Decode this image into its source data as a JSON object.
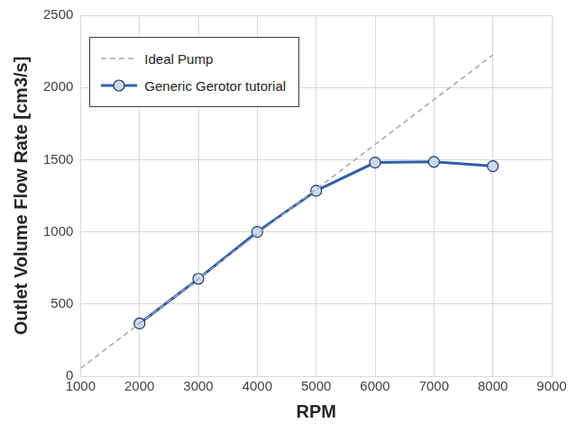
{
  "chart_data": {
    "type": "line",
    "x_label": "RPM",
    "y_label": "Outlet Volume Flow Rate [cm3/s]",
    "series": [
      {
        "name": "Ideal Pump",
        "color": "#a6a6a6",
        "line_style": "dashed",
        "marker": "none",
        "x": [
          1000,
          8000
        ],
        "values": [
          55,
          2225
        ]
      },
      {
        "name": "Generic Gerotor tutorial",
        "color": "#2f5fa8",
        "line_style": "solid",
        "marker": "circle",
        "x": [
          2000,
          3000,
          4000,
          5000,
          6000,
          7000,
          8000
        ],
        "values": [
          365,
          675,
          1000,
          1285,
          1480,
          1485,
          1455
        ]
      }
    ],
    "xlim": [
      1000,
      9000
    ],
    "xticks": [
      1000,
      2000,
      3000,
      4000,
      5000,
      6000,
      7000,
      8000,
      9000
    ],
    "ylim": [
      0,
      2500
    ],
    "yticks": [
      0,
      500,
      1000,
      1500,
      2000,
      2500
    ],
    "grid": true,
    "legend": "upper left"
  }
}
